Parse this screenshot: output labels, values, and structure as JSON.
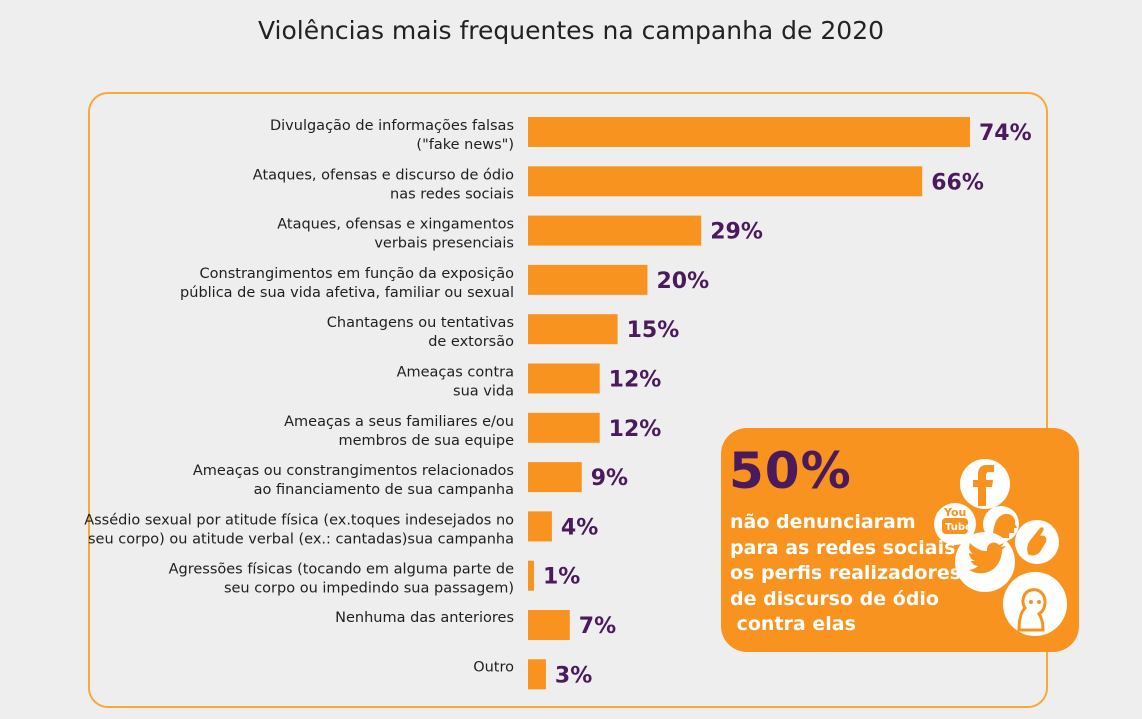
{
  "title": "Violências mais frequentes na campanha de 2020",
  "chart_data": {
    "type": "bar",
    "orientation": "horizontal",
    "title": "Violências mais frequentes na campanha de 2020",
    "value_suffix": "%",
    "xlim": [
      0,
      74
    ],
    "categories": [
      [
        "Divulgação de informações falsas",
        "(\"fake news\")"
      ],
      [
        "Ataques, ofensas e discurso de ódio",
        "nas redes sociais"
      ],
      [
        "Ataques, ofensas e xingamentos",
        "verbais presenciais"
      ],
      [
        "Constrangimentos em função da exposição",
        "pública de sua vida afetiva, familiar ou sexual"
      ],
      [
        "Chantagens ou tentativas",
        "de extorsão"
      ],
      [
        "Ameaças contra",
        "sua vida"
      ],
      [
        "Ameaças a seus familiares e/ou",
        "membros de sua equipe"
      ],
      [
        "Ameaças ou constrangimentos relacionados",
        "ao financiamento de sua campanha"
      ],
      [
        "Assédio sexual por atitude física (ex.toques indesejados no",
        "seu corpo) ou atitude verbal (ex.: cantadas)sua campanha"
      ],
      [
        "Agressões físicas (tocando em alguma parte de",
        "seu corpo ou impedindo sua passagem)"
      ],
      [
        "Nenhuma das anteriores"
      ],
      [
        "Outro"
      ]
    ],
    "values": [
      74,
      66,
      29,
      20,
      15,
      12,
      12,
      9,
      4,
      1,
      7,
      3
    ],
    "bar_color": "#f7931e",
    "value_label_color": "#4a1a5c"
  },
  "callout": {
    "percent": "50%",
    "lines": [
      "não denunciaram",
      "para as redes sociais",
      "os perfis realizadores",
      "de discurso de ódio",
      " contra elas"
    ],
    "icons": [
      "facebook-icon",
      "youtube-icon",
      "speaking-head-icon",
      "hand-icon",
      "twitter-icon",
      "woman-face-icon"
    ]
  },
  "colors": {
    "accent": "#f7931e",
    "frame": "#f7a836",
    "purple": "#4a1a5c",
    "background": "#efeeee"
  }
}
